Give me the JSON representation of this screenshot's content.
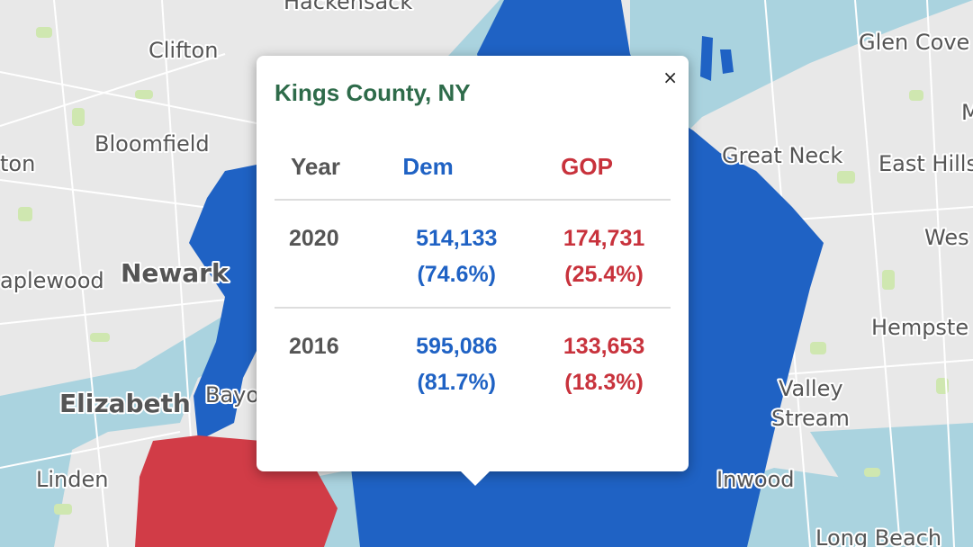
{
  "map": {
    "labels": {
      "hackensack": "Hackensack",
      "clifton": "Clifton",
      "bloomfield": "Bloomfield",
      "orange": "ton",
      "maplewood": "aplewood",
      "newark": "Newark",
      "elizabeth": "Elizabeth",
      "bayonne": "Bayo",
      "linden": "Linden",
      "glen_cove": "Glen Cove",
      "great_neck": "Great Neck",
      "east_hills": "East Hills",
      "west": "Wes",
      "hempstead": "Hempste",
      "valley_stream_1": "Valley",
      "valley_stream_2": "Stream",
      "inwood": "Inwood",
      "long_beach": "Long Beach",
      "m": "M"
    },
    "colors": {
      "dem": "#1f62c4",
      "gop": "#d13c47",
      "water": "#aad3df",
      "land": "#e8e8e8"
    }
  },
  "popup": {
    "title": "Kings County, NY",
    "close": "×",
    "headers": {
      "year": "Year",
      "dem": "Dem",
      "gop": "GOP"
    },
    "rows": [
      {
        "year": "2020",
        "dem_votes": "514,133",
        "dem_pct": "(74.6%)",
        "gop_votes": "174,731",
        "gop_pct": "(25.4%)"
      },
      {
        "year": "2016",
        "dem_votes": "595,086",
        "dem_pct": "(81.7%)",
        "gop_votes": "133,653",
        "gop_pct": "(18.3%)"
      }
    ]
  }
}
